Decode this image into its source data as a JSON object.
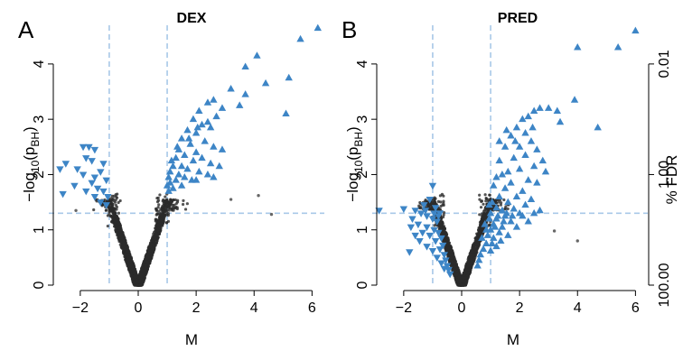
{
  "chart_data": [
    {
      "type": "scatter",
      "panel_letter": "A",
      "title": "DEX",
      "xlabel": "M",
      "ylabel": "−log10(pBH)",
      "xlim": [
        -2.9,
        6.3
      ],
      "ylim": [
        0,
        4.7
      ],
      "xticks": [
        "−2",
        "0",
        "2",
        "4",
        "6"
      ],
      "yticks": [
        "0",
        "1",
        "2",
        "3",
        "4"
      ],
      "thresholds": {
        "fold_change": [
          -1,
          1
        ],
        "significance": 1.3
      },
      "colors": {
        "nonsignificant": "#2b2b2b",
        "significant": "#3d85c6",
        "threshold_line": "#a8c8e8"
      },
      "series": [
        {
          "marker": "triangle-up",
          "points": [
            [
              6.2,
              4.65
            ],
            [
              5.6,
              4.45
            ],
            [
              4.1,
              4.15
            ],
            [
              3.7,
              3.95
            ],
            [
              5.2,
              3.75
            ],
            [
              4.4,
              3.65
            ],
            [
              3.2,
              3.55
            ],
            [
              3.7,
              3.45
            ],
            [
              5.1,
              3.1
            ],
            [
              3.5,
              3.25
            ],
            [
              2.6,
              3.35
            ],
            [
              2.9,
              3.2
            ],
            [
              2.4,
              3.3
            ],
            [
              2.1,
              3.15
            ],
            [
              2.7,
              3.05
            ],
            [
              1.9,
              3.0
            ],
            [
              2.2,
              2.9
            ],
            [
              2.5,
              2.85
            ],
            [
              1.7,
              2.8
            ],
            [
              2.0,
              2.75
            ],
            [
              1.5,
              2.65
            ],
            [
              2.3,
              2.6
            ],
            [
              1.8,
              2.55
            ],
            [
              2.6,
              2.5
            ],
            [
              1.4,
              2.45
            ],
            [
              2.0,
              2.4
            ],
            [
              2.9,
              2.45
            ],
            [
              1.6,
              2.35
            ],
            [
              1.3,
              2.3
            ],
            [
              2.2,
              2.3
            ],
            [
              1.9,
              2.25
            ],
            [
              2.5,
              2.2
            ],
            [
              1.2,
              2.15
            ],
            [
              1.5,
              2.15
            ],
            [
              1.7,
              2.1
            ],
            [
              2.8,
              2.15
            ],
            [
              1.1,
              2.05
            ],
            [
              1.4,
              2.0
            ],
            [
              2.1,
              2.05
            ],
            [
              2.4,
              2.0
            ],
            [
              1.05,
              1.95
            ],
            [
              1.6,
              1.95
            ],
            [
              1.3,
              1.9
            ],
            [
              1.85,
              1.9
            ],
            [
              2.6,
              1.95
            ],
            [
              1.1,
              1.85
            ],
            [
              1.0,
              1.8
            ],
            [
              1.2,
              1.75
            ],
            [
              1.5,
              1.8
            ],
            [
              1.05,
              1.7
            ],
            [
              2.0,
              1.9
            ],
            [
              1.35,
              2.5
            ],
            [
              1.75,
              2.65
            ],
            [
              2.05,
              2.85
            ],
            [
              2.4,
              2.95
            ],
            [
              1.15,
              2.25
            ]
          ]
        },
        {
          "marker": "triangle-down",
          "points": [
            [
              -1.9,
              2.5
            ],
            [
              -1.7,
              2.5
            ],
            [
              -1.5,
              2.45
            ],
            [
              -1.8,
              2.3
            ],
            [
              -1.6,
              2.25
            ],
            [
              -1.2,
              2.2
            ],
            [
              -2.5,
              2.2
            ],
            [
              -2.1,
              2.1
            ],
            [
              -1.9,
              2.0
            ],
            [
              -1.3,
              2.05
            ],
            [
              -1.5,
              1.95
            ],
            [
              -2.7,
              2.1
            ],
            [
              -1.1,
              1.9
            ],
            [
              -1.6,
              1.85
            ],
            [
              -2.2,
              1.8
            ],
            [
              -1.4,
              1.75
            ],
            [
              -1.8,
              1.7
            ],
            [
              -1.2,
              1.7
            ],
            [
              -2.6,
              1.65
            ],
            [
              -1.05,
              1.6
            ],
            [
              -1.5,
              1.6
            ],
            [
              -1.3,
              1.5
            ],
            [
              -1.1,
              1.45
            ]
          ]
        },
        {
          "marker": "dot",
          "points": [
            [
              4.15,
              1.62
            ],
            [
              4.6,
              1.28
            ],
            [
              3.2,
              1.55
            ],
            [
              -2.15,
              1.35
            ]
          ]
        }
      ]
    },
    {
      "type": "scatter",
      "panel_letter": "B",
      "title": "PRED",
      "xlabel": "M",
      "ylabel": "−log10(pBH)",
      "secondary_ylabel": "% FDR",
      "secondary_yticks": [
        "0.01",
        "1.00",
        "100.00"
      ],
      "xlim": [
        -2.9,
        6.3
      ],
      "ylim": [
        0,
        4.7
      ],
      "xticks": [
        "−2",
        "0",
        "2",
        "4",
        "6"
      ],
      "yticks": [
        "0",
        "1",
        "2",
        "3",
        "4"
      ],
      "thresholds": {
        "fold_change": [
          -1,
          1
        ],
        "significance": 1.3
      },
      "colors": {
        "nonsignificant": "#2b2b2b",
        "significant": "#3d85c6",
        "threshold_line": "#a8c8e8"
      },
      "series": [
        {
          "marker": "triangle-up",
          "points": [
            [
              6.0,
              4.6
            ],
            [
              5.4,
              4.3
            ],
            [
              4.0,
              4.3
            ],
            [
              3.9,
              3.35
            ],
            [
              2.7,
              3.2
            ],
            [
              3.0,
              3.2
            ],
            [
              3.3,
              3.15
            ],
            [
              2.5,
              3.15
            ],
            [
              2.3,
              3.05
            ],
            [
              3.4,
              2.95
            ],
            [
              2.1,
              3.0
            ],
            [
              4.7,
              2.85
            ],
            [
              1.9,
              2.85
            ],
            [
              2.2,
              2.75
            ],
            [
              2.4,
              2.6
            ],
            [
              1.7,
              2.7
            ],
            [
              2.0,
              2.5
            ],
            [
              2.6,
              2.45
            ],
            [
              1.5,
              2.5
            ],
            [
              2.2,
              2.35
            ],
            [
              1.8,
              2.3
            ],
            [
              2.8,
              2.25
            ],
            [
              1.3,
              2.25
            ],
            [
              2.5,
              2.15
            ],
            [
              2.0,
              2.1
            ],
            [
              1.6,
              2.05
            ],
            [
              2.9,
              2.05
            ],
            [
              1.2,
              1.95
            ],
            [
              1.4,
              2.0
            ],
            [
              2.3,
              1.9
            ],
            [
              1.7,
              1.85
            ],
            [
              2.6,
              1.85
            ],
            [
              1.1,
              1.8
            ],
            [
              1.5,
              1.75
            ],
            [
              2.1,
              1.7
            ],
            [
              1.9,
              1.6
            ],
            [
              1.3,
              1.6
            ],
            [
              2.4,
              1.55
            ],
            [
              1.05,
              1.5
            ],
            [
              1.6,
              1.5
            ],
            [
              2.2,
              1.45
            ],
            [
              1.2,
              1.4
            ],
            [
              1.8,
              1.38
            ],
            [
              2.7,
              1.35
            ],
            [
              1.4,
              1.35
            ],
            [
              1.0,
              1.3
            ],
            [
              2.0,
              1.3
            ],
            [
              1.5,
              1.25
            ],
            [
              1.2,
              1.2
            ],
            [
              1.7,
              1.15
            ],
            [
              2.3,
              1.15
            ],
            [
              1.1,
              1.1
            ],
            [
              1.4,
              1.05
            ],
            [
              1.9,
              1.05
            ],
            [
              1.0,
              1.0
            ],
            [
              1.3,
              0.95
            ],
            [
              1.6,
              0.9
            ],
            [
              1.1,
              0.85
            ],
            [
              1.35,
              0.8
            ],
            [
              1.05,
              0.75
            ],
            [
              1.2,
              0.7
            ],
            [
              1.0,
              0.62
            ],
            [
              0.85,
              0.75
            ],
            [
              0.9,
              0.9
            ],
            [
              0.8,
              1.1
            ],
            [
              0.95,
              1.2
            ],
            [
              0.7,
              0.85
            ],
            [
              0.75,
              0.65
            ],
            [
              0.65,
              0.55
            ],
            [
              0.6,
              0.45
            ],
            [
              0.55,
              0.35
            ],
            [
              0.85,
              1.0
            ],
            [
              1.45,
              1.15
            ],
            [
              1.25,
              1.25
            ],
            [
              1.55,
              1.3
            ],
            [
              0.95,
              1.45
            ],
            [
              1.15,
              1.05
            ],
            [
              1.75,
              1.25
            ],
            [
              2.1,
              1.25
            ],
            [
              2.5,
              1.3
            ],
            [
              1.3,
              2.6
            ],
            [
              1.55,
              2.8
            ],
            [
              2.45,
              2.85
            ],
            [
              1.85,
              2.6
            ]
          ]
        },
        {
          "marker": "triangle-down",
          "points": [
            [
              -2.0,
              1.38
            ],
            [
              -1.6,
              1.35
            ],
            [
              -1.0,
              1.8
            ],
            [
              -1.1,
              1.55
            ],
            [
              -1.3,
              1.45
            ],
            [
              -0.9,
              1.4
            ],
            [
              -1.4,
              1.3
            ],
            [
              -1.2,
              1.25
            ],
            [
              -1.7,
              1.2
            ],
            [
              -1.0,
              1.2
            ],
            [
              -0.85,
              1.15
            ],
            [
              -1.5,
              1.1
            ],
            [
              -1.2,
              1.05
            ],
            [
              -0.95,
              1.0
            ],
            [
              -1.35,
              0.95
            ],
            [
              -0.8,
              0.95
            ],
            [
              -1.1,
              0.9
            ],
            [
              -0.7,
              0.85
            ],
            [
              -1.45,
              0.8
            ],
            [
              -0.9,
              0.8
            ],
            [
              -0.65,
              0.72
            ],
            [
              -1.2,
              0.7
            ],
            [
              -0.75,
              0.65
            ],
            [
              -1.0,
              0.62
            ],
            [
              -0.6,
              0.55
            ],
            [
              -0.85,
              0.5
            ],
            [
              -0.55,
              0.45
            ],
            [
              -0.7,
              0.4
            ],
            [
              -0.5,
              0.35
            ],
            [
              -0.45,
              0.28
            ],
            [
              -0.6,
              0.3
            ],
            [
              -1.6,
              0.9
            ],
            [
              -0.75,
              1.3
            ],
            [
              -1.25,
              1.35
            ],
            [
              -0.95,
              1.3
            ],
            [
              -1.75,
              1.05
            ],
            [
              -0.8,
              1.25
            ],
            [
              -2.85,
              1.35
            ],
            [
              -0.4,
              0.2
            ],
            [
              -1.8,
              0.6
            ]
          ]
        },
        {
          "marker": "dot",
          "points": [
            [
              4.0,
              0.8
            ],
            [
              3.2,
              0.98
            ]
          ]
        }
      ]
    }
  ]
}
